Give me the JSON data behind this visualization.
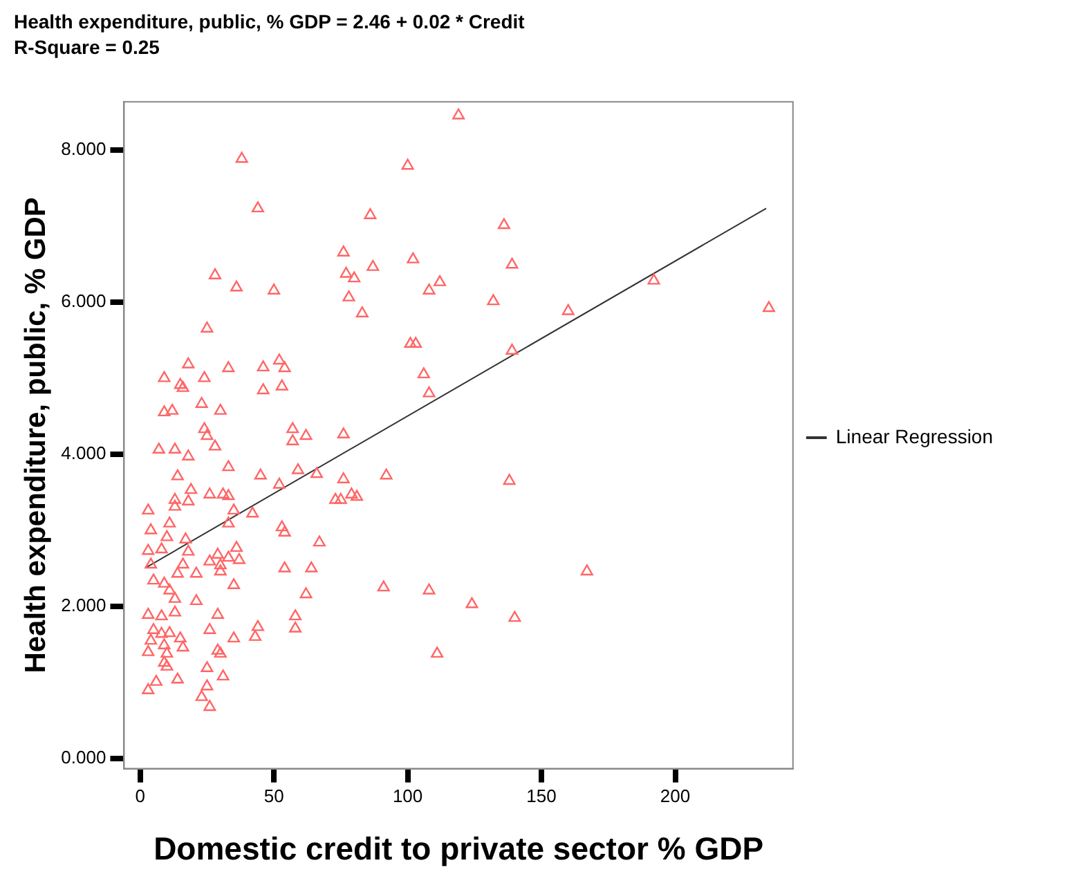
{
  "chart_data": {
    "type": "scatter",
    "title": "Health expenditure, public, % GDP = 2.46 + 0.02 * Credit",
    "subtitle": "R-Square = 0.25",
    "xlabel": "Domestic credit to private sector % GDP",
    "ylabel": "Health expenditure, public, % GDP",
    "xlim": [
      -6,
      244
    ],
    "ylim": [
      -0.13,
      8.63
    ],
    "xticks": [
      0,
      50,
      100,
      150,
      200
    ],
    "yticks": [
      {
        "value": 0,
        "label": "0.000"
      },
      {
        "value": 2,
        "label": "2.000"
      },
      {
        "value": 4,
        "label": "4.000"
      },
      {
        "value": 6,
        "label": "6.000"
      },
      {
        "value": 8,
        "label": "8.000"
      }
    ],
    "grid": false,
    "legend": "right",
    "series": [
      {
        "marker": "triangle",
        "color": "#ff6666",
        "x": [
          119,
          38,
          100,
          44,
          86,
          136,
          76,
          87,
          102,
          77,
          80,
          28,
          36,
          50,
          78,
          83,
          108,
          112,
          25,
          139,
          132,
          160,
          139,
          192,
          235,
          138,
          167,
          124,
          140,
          101,
          103,
          106,
          108,
          54,
          53,
          57,
          62,
          76,
          59,
          66,
          76,
          73,
          75,
          79,
          81,
          92,
          54,
          67,
          54,
          64,
          62,
          91,
          108,
          18,
          9,
          15,
          16,
          24,
          33,
          46,
          52,
          46,
          9,
          12,
          23,
          30,
          24,
          25,
          28,
          57,
          7,
          13,
          18,
          33,
          14,
          45,
          52,
          19,
          26,
          31,
          33,
          13,
          13,
          18,
          3,
          35,
          42,
          33,
          11,
          4,
          53,
          10,
          17,
          3,
          8,
          18,
          36,
          26,
          29,
          33,
          37,
          4,
          16,
          30,
          14,
          21,
          5,
          9,
          30,
          35,
          11,
          13,
          21,
          3,
          8,
          13,
          29,
          26,
          5,
          8,
          11,
          15,
          35,
          4,
          9,
          16,
          44,
          43,
          3,
          10,
          29,
          30,
          58,
          58,
          9,
          10,
          25,
          31,
          14,
          6,
          3,
          25,
          23,
          26,
          111
        ],
        "values": [
          8.45,
          7.88,
          7.79,
          7.23,
          7.14,
          7.01,
          6.65,
          6.46,
          6.56,
          6.37,
          6.31,
          6.35,
          6.19,
          6.15,
          6.06,
          5.85,
          6.15,
          6.26,
          5.65,
          6.49,
          6.01,
          5.88,
          5.36,
          6.28,
          5.92,
          3.65,
          2.46,
          2.03,
          1.85,
          5.45,
          5.45,
          5.05,
          4.8,
          5.13,
          4.89,
          4.33,
          4.24,
          4.26,
          3.79,
          3.74,
          3.67,
          3.4,
          3.4,
          3.47,
          3.44,
          3.72,
          2.97,
          2.84,
          2.5,
          2.5,
          2.16,
          2.25,
          2.21,
          5.18,
          5.0,
          4.91,
          4.87,
          5.0,
          5.13,
          5.14,
          5.23,
          4.84,
          4.55,
          4.57,
          4.66,
          4.57,
          4.33,
          4.24,
          4.1,
          4.17,
          4.06,
          4.06,
          3.97,
          3.83,
          3.71,
          3.72,
          3.6,
          3.53,
          3.47,
          3.47,
          3.45,
          3.4,
          3.31,
          3.38,
          3.26,
          3.26,
          3.22,
          3.09,
          3.09,
          3.0,
          3.04,
          2.91,
          2.88,
          2.73,
          2.75,
          2.72,
          2.77,
          2.59,
          2.68,
          2.64,
          2.61,
          2.55,
          2.55,
          2.54,
          2.43,
          2.43,
          2.34,
          2.3,
          2.46,
          2.28,
          2.21,
          2.1,
          2.07,
          1.89,
          1.87,
          1.92,
          1.89,
          1.69,
          1.69,
          1.64,
          1.65,
          1.58,
          1.58,
          1.55,
          1.49,
          1.46,
          1.73,
          1.6,
          1.4,
          1.38,
          1.42,
          1.38,
          1.87,
          1.71,
          1.26,
          1.21,
          1.19,
          1.08,
          1.04,
          1.01,
          0.9,
          0.95,
          0.81,
          0.68,
          1.38
        ]
      },
      {
        "type": "line",
        "name": "Linear Regression",
        "color": "#333333",
        "x": [
          2.6,
          234
        ],
        "values": [
          2.52,
          7.23
        ]
      }
    ]
  }
}
